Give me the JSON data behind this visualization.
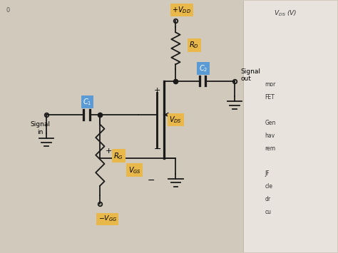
{
  "bg_color_left": "#d0c9bc",
  "bg_color_right": "#e8e4dd",
  "wire_color": "#1a1a1a",
  "label_bg_yellow": "#e8b84b",
  "label_bg_blue": "#5b9bd5",
  "label_text_color": "#000000",
  "vdd_label": "$+V_{DD}$",
  "rd_label": "$R_D$",
  "c2_label": "$C_2$",
  "c1_label": "$C_1$",
  "rg_label": "$R_G$",
  "vgs_label": "$V_{GS}$",
  "vds_label": "$V_{DS}$",
  "vgg_label": "$-V_{GG}$",
  "signal_in": "Signal\nin",
  "signal_out": "Signal\nout",
  "vds_label_italic": "$\\mathit{V}_{DS}$ (V)",
  "right_text": [
    "mor",
    "FET",
    "",
    "Gen",
    "hav",
    "rem",
    "",
    "JF",
    "cle",
    "dr",
    "cu"
  ]
}
